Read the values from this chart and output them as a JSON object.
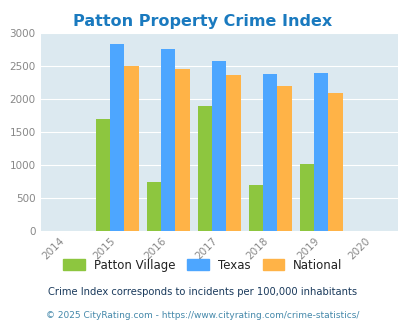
{
  "title": "Patton Property Crime Index",
  "years": [
    2015,
    2016,
    2017,
    2018,
    2019
  ],
  "patton_village": [
    1700,
    750,
    1900,
    700,
    1010
  ],
  "texas": [
    2840,
    2760,
    2575,
    2375,
    2390
  ],
  "national": [
    2500,
    2460,
    2360,
    2190,
    2090
  ],
  "bar_colors": {
    "patton": "#8dc63f",
    "texas": "#4da6ff",
    "national": "#ffb347"
  },
  "xlim": [
    2013.5,
    2020.5
  ],
  "ylim": [
    0,
    3000
  ],
  "yticks": [
    0,
    500,
    1000,
    1500,
    2000,
    2500,
    3000
  ],
  "xticks": [
    2014,
    2015,
    2016,
    2017,
    2018,
    2019,
    2020
  ],
  "bg_color": "#dce9f0",
  "title_color": "#1a7abf",
  "legend_labels": [
    "Patton Village",
    "Texas",
    "National"
  ],
  "footnote1": "Crime Index corresponds to incidents per 100,000 inhabitants",
  "footnote2": "© 2025 CityRating.com - https://www.cityrating.com/crime-statistics/",
  "bar_width": 0.28
}
